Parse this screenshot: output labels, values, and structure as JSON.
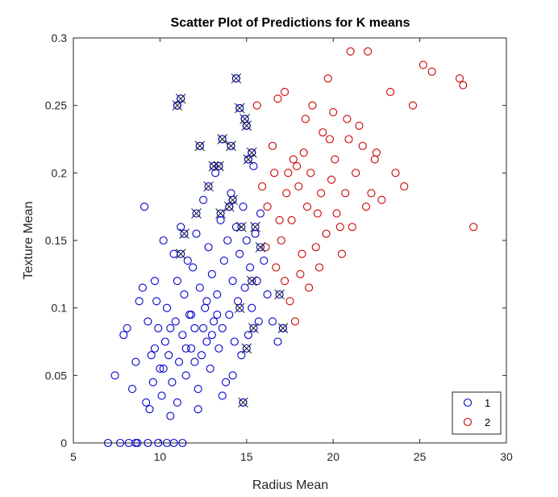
{
  "chart_data": {
    "type": "scatter",
    "title": "Scatter Plot of Predictions for K means",
    "xlabel": "Radius Mean",
    "ylabel": "Texture Mean",
    "xlim": [
      5,
      30
    ],
    "ylim": [
      0,
      0.3
    ],
    "xticks": [
      "5",
      "10",
      "15",
      "20",
      "25",
      "30"
    ],
    "yticks": [
      "0",
      "0.05",
      "0.1",
      "0.15",
      "0.2",
      "0.25",
      "0.3"
    ],
    "grid": false,
    "legend_position": "bottom-right",
    "series": [
      {
        "name": "1",
        "color": "#0000cc",
        "marker": "circle-open",
        "points": [
          [
            7.0,
            0
          ],
          [
            7.7,
            0
          ],
          [
            8.2,
            0
          ],
          [
            8.6,
            0
          ],
          [
            8.7,
            0
          ],
          [
            9.3,
            0
          ],
          [
            9.9,
            0
          ],
          [
            10.4,
            0
          ],
          [
            10.8,
            0
          ],
          [
            11.3,
            0
          ],
          [
            7.4,
            0.05
          ],
          [
            7.9,
            0.08
          ],
          [
            8.1,
            0.085
          ],
          [
            8.4,
            0.04
          ],
          [
            8.6,
            0.06
          ],
          [
            8.8,
            0.105
          ],
          [
            9.0,
            0.115
          ],
          [
            9.1,
            0.175
          ],
          [
            9.2,
            0.03
          ],
          [
            9.3,
            0.09
          ],
          [
            9.4,
            0.025
          ],
          [
            9.5,
            0.065
          ],
          [
            9.6,
            0.045
          ],
          [
            9.7,
            0.12
          ],
          [
            9.8,
            0.105
          ],
          [
            9.9,
            0.085
          ],
          [
            10.0,
            0.055
          ],
          [
            10.1,
            0.035
          ],
          [
            10.2,
            0.15
          ],
          [
            10.3,
            0.075
          ],
          [
            10.4,
            0.1
          ],
          [
            10.5,
            0.065
          ],
          [
            10.6,
            0.02
          ],
          [
            10.7,
            0.045
          ],
          [
            10.8,
            0.14
          ],
          [
            10.9,
            0.09
          ],
          [
            11.0,
            0.12
          ],
          [
            11.1,
            0.06
          ],
          [
            11.2,
            0.16
          ],
          [
            11.3,
            0.08
          ],
          [
            11.4,
            0.11
          ],
          [
            11.5,
            0.05
          ],
          [
            11.6,
            0.135
          ],
          [
            11.7,
            0.095
          ],
          [
            11.8,
            0.07
          ],
          [
            11.9,
            0.13
          ],
          [
            12.0,
            0.085
          ],
          [
            12.1,
            0.155
          ],
          [
            12.2,
            0.04
          ],
          [
            12.3,
            0.115
          ],
          [
            12.4,
            0.065
          ],
          [
            12.5,
            0.18
          ],
          [
            12.6,
            0.1
          ],
          [
            12.7,
            0.075
          ],
          [
            12.8,
            0.145
          ],
          [
            12.9,
            0.055
          ],
          [
            13.0,
            0.125
          ],
          [
            13.1,
            0.09
          ],
          [
            13.2,
            0.2
          ],
          [
            13.3,
            0.11
          ],
          [
            13.4,
            0.07
          ],
          [
            13.5,
            0.165
          ],
          [
            13.6,
            0.085
          ],
          [
            13.7,
            0.135
          ],
          [
            13.8,
            0.045
          ],
          [
            13.9,
            0.15
          ],
          [
            14.0,
            0.095
          ],
          [
            14.1,
            0.185
          ],
          [
            14.2,
            0.12
          ],
          [
            14.3,
            0.075
          ],
          [
            14.4,
            0.16
          ],
          [
            14.5,
            0.105
          ],
          [
            14.6,
            0.14
          ],
          [
            14.7,
            0.065
          ],
          [
            14.8,
            0.175
          ],
          [
            14.9,
            0.115
          ],
          [
            15.0,
            0.15
          ],
          [
            15.1,
            0.08
          ],
          [
            15.2,
            0.13
          ],
          [
            15.3,
            0.1
          ],
          [
            15.4,
            0.205
          ],
          [
            15.5,
            0.155
          ],
          [
            15.6,
            0.12
          ],
          [
            15.7,
            0.09
          ],
          [
            15.8,
            0.17
          ],
          [
            16.0,
            0.135
          ],
          [
            16.2,
            0.11
          ],
          [
            16.5,
            0.09
          ],
          [
            16.8,
            0.075
          ],
          [
            17.1,
            0.085
          ],
          [
            11.0,
            0.25
          ],
          [
            11.2,
            0.255
          ],
          [
            12.3,
            0.22
          ],
          [
            13.1,
            0.205
          ],
          [
            13.4,
            0.205
          ],
          [
            13.6,
            0.225
          ],
          [
            14.1,
            0.22
          ],
          [
            14.4,
            0.27
          ],
          [
            14.6,
            0.248
          ],
          [
            14.9,
            0.24
          ],
          [
            15.0,
            0.235
          ],
          [
            14.2,
            0.18
          ],
          [
            14.0,
            0.175
          ],
          [
            15.3,
            0.215
          ],
          [
            15.1,
            0.21
          ],
          [
            14.8,
            0.03
          ],
          [
            13.0,
            0.08
          ],
          [
            12.5,
            0.085
          ],
          [
            12.0,
            0.06
          ],
          [
            11.5,
            0.07
          ],
          [
            10.6,
            0.085
          ],
          [
            11.8,
            0.095
          ],
          [
            12.7,
            0.105
          ],
          [
            13.3,
            0.095
          ],
          [
            10.2,
            0.055
          ],
          [
            9.7,
            0.07
          ],
          [
            11.0,
            0.03
          ],
          [
            12.2,
            0.025
          ],
          [
            13.6,
            0.035
          ],
          [
            14.2,
            0.05
          ]
        ]
      },
      {
        "name": "2",
        "color": "#cc0000",
        "marker": "circle-open",
        "points": [
          [
            15.6,
            0.25
          ],
          [
            16.5,
            0.22
          ],
          [
            16.8,
            0.255
          ],
          [
            17.2,
            0.26
          ],
          [
            17.7,
            0.21
          ],
          [
            18.0,
            0.19
          ],
          [
            18.4,
            0.24
          ],
          [
            18.8,
            0.25
          ],
          [
            19.1,
            0.17
          ],
          [
            19.4,
            0.23
          ],
          [
            19.7,
            0.27
          ],
          [
            20.1,
            0.21
          ],
          [
            20.4,
            0.16
          ],
          [
            20.8,
            0.24
          ],
          [
            21.0,
            0.29
          ],
          [
            21.3,
            0.2
          ],
          [
            21.7,
            0.22
          ],
          [
            22.0,
            0.29
          ],
          [
            22.4,
            0.21
          ],
          [
            22.8,
            0.18
          ],
          [
            23.3,
            0.26
          ],
          [
            23.6,
            0.2
          ],
          [
            24.1,
            0.19
          ],
          [
            24.6,
            0.25
          ],
          [
            25.2,
            0.28
          ],
          [
            25.7,
            0.275
          ],
          [
            27.3,
            0.27
          ],
          [
            27.5,
            0.265
          ],
          [
            28.1,
            0.16
          ],
          [
            15.9,
            0.19
          ],
          [
            16.2,
            0.175
          ],
          [
            16.6,
            0.2
          ],
          [
            17.0,
            0.15
          ],
          [
            17.3,
            0.185
          ],
          [
            17.6,
            0.165
          ],
          [
            17.9,
            0.205
          ],
          [
            18.2,
            0.14
          ],
          [
            18.5,
            0.175
          ],
          [
            18.7,
            0.2
          ],
          [
            19.0,
            0.145
          ],
          [
            19.3,
            0.185
          ],
          [
            19.6,
            0.155
          ],
          [
            19.9,
            0.195
          ],
          [
            20.2,
            0.17
          ],
          [
            20.5,
            0.14
          ],
          [
            20.7,
            0.185
          ],
          [
            21.1,
            0.16
          ],
          [
            21.5,
            0.235
          ],
          [
            21.9,
            0.175
          ],
          [
            22.5,
            0.215
          ],
          [
            16.1,
            0.145
          ],
          [
            16.7,
            0.13
          ],
          [
            17.2,
            0.12
          ],
          [
            17.5,
            0.105
          ],
          [
            17.8,
            0.09
          ],
          [
            18.1,
            0.125
          ],
          [
            18.6,
            0.115
          ],
          [
            19.2,
            0.13
          ],
          [
            16.9,
            0.165
          ],
          [
            17.4,
            0.2
          ],
          [
            18.3,
            0.215
          ],
          [
            19.8,
            0.225
          ],
          [
            20.0,
            0.245
          ],
          [
            20.9,
            0.225
          ],
          [
            22.2,
            0.185
          ]
        ]
      }
    ],
    "crossed_points": [
      [
        11.0,
        0.25
      ],
      [
        11.2,
        0.255
      ],
      [
        12.3,
        0.22
      ],
      [
        13.1,
        0.205
      ],
      [
        13.4,
        0.205
      ],
      [
        13.6,
        0.225
      ],
      [
        14.1,
        0.22
      ],
      [
        14.4,
        0.27
      ],
      [
        14.6,
        0.248
      ],
      [
        14.9,
        0.24
      ],
      [
        15.0,
        0.235
      ],
      [
        14.2,
        0.18
      ],
      [
        14.0,
        0.175
      ],
      [
        15.3,
        0.215
      ],
      [
        15.1,
        0.21
      ],
      [
        14.8,
        0.03
      ],
      [
        11.2,
        0.14
      ],
      [
        11.4,
        0.155
      ],
      [
        12.1,
        0.17
      ],
      [
        12.8,
        0.19
      ],
      [
        13.5,
        0.17
      ],
      [
        14.7,
        0.16
      ],
      [
        15.5,
        0.16
      ],
      [
        15.8,
        0.145
      ],
      [
        15.3,
        0.12
      ],
      [
        14.6,
        0.1
      ],
      [
        15.4,
        0.085
      ],
      [
        15.0,
        0.07
      ],
      [
        16.9,
        0.11
      ],
      [
        17.1,
        0.085
      ]
    ]
  }
}
